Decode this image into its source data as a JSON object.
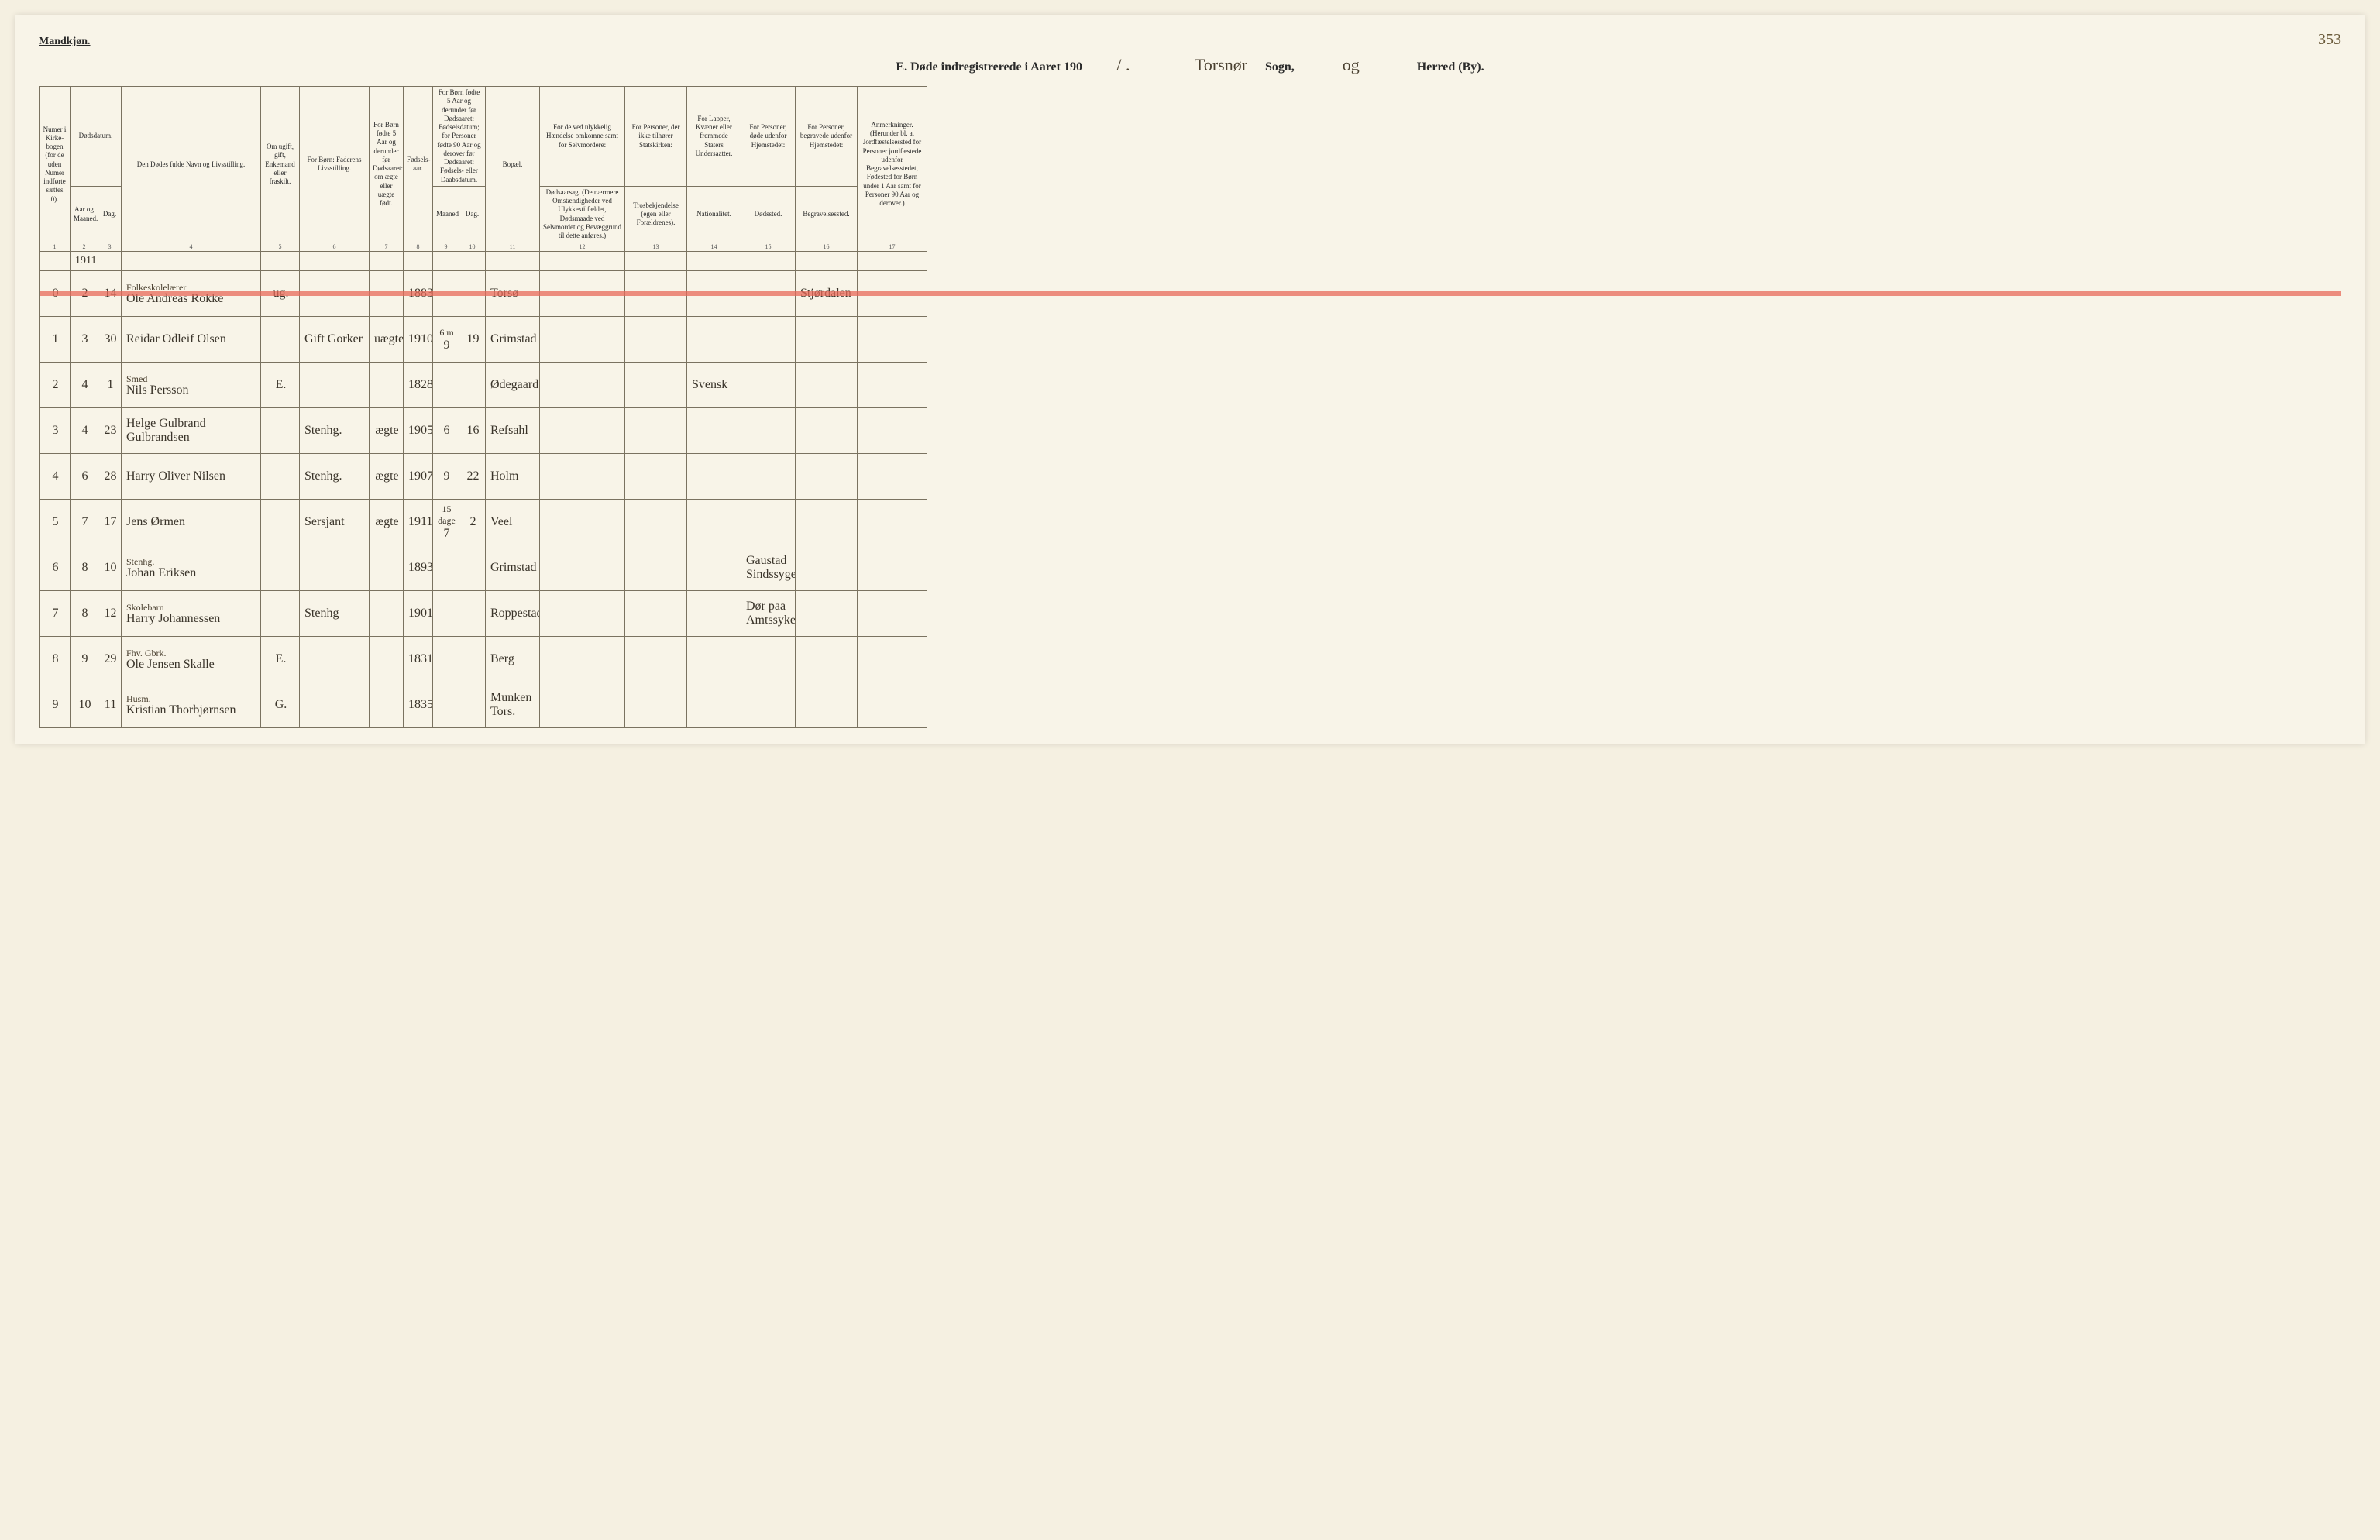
{
  "header": {
    "gender_label": "Mandkjøn.",
    "page_number": "353",
    "title_prefix": "E.  Døde indregistrerede i Aaret 19",
    "year_suffix_struck": "0",
    "year_handwritten": "/ .",
    "parish_handwritten": "Torsnør",
    "parish_label": "Sogn,",
    "herred_handwritten": "og",
    "herred_label": "Herred (By)."
  },
  "columns": [
    {
      "w": 40,
      "label": "Numer i Kirke-bogen (for de uden Numer indførte sættes 0)."
    },
    {
      "w": 36,
      "label": "Aar og Maaned."
    },
    {
      "w": 30,
      "label": "Dag.",
      "group": "Dødsdatum."
    },
    {
      "w": 180,
      "label": "Den Dødes fulde Navn og Livsstilling."
    },
    {
      "w": 50,
      "label": "Om ugift, gift, Enkemand eller fraskilt."
    },
    {
      "w": 90,
      "label": "For Børn: Faderens Livsstilling."
    },
    {
      "w": 44,
      "label": "For Børn fødte 5 Aar og derunder før Dødsaaret: om ægte eller uægte født."
    },
    {
      "w": 38,
      "label": "Fødsels-aar."
    },
    {
      "w": 34,
      "label": "Maaned."
    },
    {
      "w": 34,
      "label": "Dag.",
      "group": "Fødsels- eller Daabsdatum"
    },
    {
      "w": 70,
      "label": "Bopæl."
    },
    {
      "w": 110,
      "label": "Dødsaarsag. (De nærmere Omstændigheder ved Ulykkestilfældet, Dødsmaade ved Selvmordet og Bevæggrund til dette anføres.)",
      "group": "For de ved ulykkelig Hændelse omkomne samt for Selvmordere:"
    },
    {
      "w": 80,
      "label": "Trosbekjendelse (egen eller Forældrenes).",
      "group": "For Personer, der ikke tilhører Statskirken:"
    },
    {
      "w": 70,
      "label": "Nationalitet.",
      "group": "For Lapper, Kvæner eller fremmede Staters Undersaatter."
    },
    {
      "w": 70,
      "label": "Dødssted.",
      "group": "For Personer, døde udenfor Hjemstedet:"
    },
    {
      "w": 80,
      "label": "Begravelsessted.",
      "group": "For Personer, begravede udenfor Hjemstedet:"
    },
    {
      "w": 90,
      "label": "Anmerkninger. (Herunder bl. a. Jordfæstelsessted for Personer jordfæstede udenfor Begravelsesstedet, Fødested for Børn under 1 Aar samt for Personer 90 Aar og derover.)"
    }
  ],
  "col9_header_top": "For Børn fødte 5 Aar og derunder før Dødsaaret: Fødselsdatum; for Personer fødte 90 Aar og derover før Dødsaaret: Fødsels- eller Daabsdatum.",
  "colnums": [
    "1",
    "2",
    "3",
    "4",
    "5",
    "6",
    "7",
    "8",
    "9",
    "10",
    "11",
    "12",
    "13",
    "14",
    "15",
    "16",
    "17"
  ],
  "year_row": "1911",
  "rows": [
    {
      "n": "0",
      "mon": "2",
      "day": "14",
      "name": "Ole Andreas Rokke",
      "occ": "Folkeskolelærer",
      "status": "ug.",
      "father": "",
      "legit": "",
      "byear": "1883",
      "bmon": "",
      "bday": "",
      "bopael": "Torsø",
      "aarsag": "",
      "tros": "",
      "nat": "",
      "dsted": "",
      "begrav": "Stjørdalen",
      "anm": "",
      "struck": true
    },
    {
      "n": "1",
      "mon": "3",
      "day": "30",
      "name": "Reidar Odleif Olsen",
      "occ": "",
      "status": "",
      "father": "Gift Gorker",
      "legit": "uægte",
      "byear": "1910",
      "bmon": "9",
      "bday": "19",
      "bopael": "Grimstad",
      "aarsag": "",
      "tros": "",
      "nat": "",
      "dsted": "",
      "begrav": "",
      "anm": "",
      "note1": "6 m"
    },
    {
      "n": "2",
      "mon": "4",
      "day": "1",
      "name": "Nils Persson",
      "occ": "Smed",
      "status": "E.",
      "father": "",
      "legit": "",
      "byear": "1828",
      "bmon": "",
      "bday": "",
      "bopael": "Ødegaard",
      "aarsag": "",
      "tros": "",
      "nat": "Svensk",
      "dsted": "",
      "begrav": "",
      "anm": ""
    },
    {
      "n": "3",
      "mon": "4",
      "day": "23",
      "name": "Helge Gulbrand Gulbrandsen",
      "occ": "",
      "status": "",
      "father": "Stenhg.",
      "legit": "ægte",
      "byear": "1905",
      "bmon": "6",
      "bday": "16",
      "bopael": "Refsahl",
      "aarsag": "",
      "tros": "",
      "nat": "",
      "dsted": "",
      "begrav": "",
      "anm": ""
    },
    {
      "n": "4",
      "mon": "6",
      "day": "28",
      "name": "Harry Oliver Nilsen",
      "occ": "",
      "status": "",
      "father": "Stenhg.",
      "legit": "ægte",
      "byear": "1907",
      "bmon": "9",
      "bday": "22",
      "bopael": "Holm",
      "aarsag": "",
      "tros": "",
      "nat": "",
      "dsted": "",
      "begrav": "",
      "anm": ""
    },
    {
      "n": "5",
      "mon": "7",
      "day": "17",
      "name": "Jens Ørmen",
      "occ": "",
      "status": "",
      "father": "Sersjant",
      "legit": "ægte",
      "byear": "1911",
      "bmon": "7",
      "bday": "2",
      "bopael": "Veel",
      "aarsag": "",
      "tros": "",
      "nat": "",
      "dsted": "",
      "begrav": "",
      "anm": "",
      "note1": "15 dage"
    },
    {
      "n": "6",
      "mon": "8",
      "day": "10",
      "name": "Johan Eriksen",
      "occ": "Stenhg.",
      "status": "",
      "father": "",
      "legit": "",
      "byear": "1893",
      "bmon": "",
      "bday": "",
      "bopael": "Grimstad",
      "aarsag": "",
      "tros": "",
      "nat": "",
      "dsted": "Gaustad Sindssygeasyl",
      "begrav": "",
      "anm": ""
    },
    {
      "n": "7",
      "mon": "8",
      "day": "12",
      "name": "Harry Johannessen",
      "occ": "Skolebarn",
      "status": "",
      "father": "Stenhg",
      "legit": "",
      "byear": "1901",
      "bmon": "",
      "bday": "",
      "bopael": "Roppestad",
      "aarsag": "",
      "tros": "",
      "nat": "",
      "dsted": "Dør paa Amtssykehuset",
      "begrav": "",
      "anm": ""
    },
    {
      "n": "8",
      "mon": "9",
      "day": "29",
      "name": "Ole Jensen Skalle",
      "occ": "Fhv. Gbrk.",
      "status": "E.",
      "father": "",
      "legit": "",
      "byear": "1831",
      "bmon": "",
      "bday": "",
      "bopael": "Berg",
      "aarsag": "",
      "tros": "",
      "nat": "",
      "dsted": "",
      "begrav": "",
      "anm": ""
    },
    {
      "n": "9",
      "mon": "10",
      "day": "11",
      "name": "Kristian Thorbjørnsen",
      "occ": "Husm.",
      "status": "G.",
      "father": "",
      "legit": "",
      "byear": "1835",
      "bmon": "",
      "bday": "",
      "bopael": "Munken Tors.",
      "aarsag": "",
      "tros": "",
      "nat": "",
      "dsted": "",
      "begrav": "",
      "anm": ""
    }
  ]
}
